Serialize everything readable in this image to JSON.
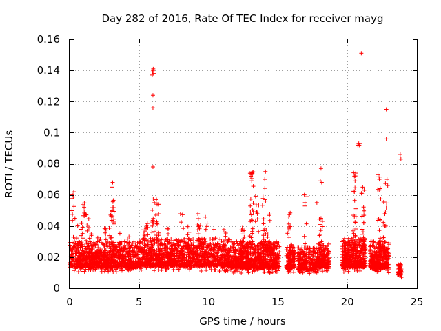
{
  "chart_data": {
    "type": "scatter",
    "title": "Day 282 of 2016, Rate Of TEC Index for receiver mayg",
    "xlabel": "GPS time / hours",
    "ylabel": "ROTI / TECUs",
    "xlim": [
      0,
      25
    ],
    "ylim": [
      0,
      0.16
    ],
    "x_ticks": [
      0,
      5,
      10,
      15,
      20,
      25
    ],
    "x_tick_labels": [
      "0",
      "5",
      "10",
      "15",
      "20",
      "25"
    ],
    "y_ticks": [
      0,
      0.02,
      0.04,
      0.06,
      0.08,
      0.1,
      0.12,
      0.14,
      0.16
    ],
    "y_tick_labels": [
      "0",
      "0.02",
      "0.04",
      "0.06",
      "0.08",
      "0.1",
      "0.12",
      "0.14",
      "0.16"
    ],
    "grid": true,
    "marker": "+",
    "color": "#ff0000",
    "series": [
      {
        "name": "ROTI",
        "segments": [
          {
            "x": [
              0.0,
              4.9
            ],
            "low": 0.004,
            "high": 0.03,
            "count": 900
          },
          {
            "x": [
              4.9,
              11.6
            ],
            "low": 0.004,
            "high": 0.032,
            "count": 1200
          },
          {
            "x": [
              11.6,
              15.1
            ],
            "low": 0.003,
            "high": 0.03,
            "count": 800
          },
          {
            "x": [
              15.6,
              16.2
            ],
            "low": 0.004,
            "high": 0.028,
            "count": 150
          },
          {
            "x": [
              16.4,
              17.8
            ],
            "low": 0.004,
            "high": 0.026,
            "count": 260
          },
          {
            "x": [
              17.8,
              18.7
            ],
            "low": 0.004,
            "high": 0.03,
            "count": 180
          },
          {
            "x": [
              19.6,
              21.3
            ],
            "low": 0.003,
            "high": 0.032,
            "count": 420
          },
          {
            "x": [
              21.6,
              23.0
            ],
            "low": 0.003,
            "high": 0.03,
            "count": 340
          },
          {
            "x": [
              23.6,
              23.9
            ],
            "low": 0.004,
            "high": 0.016,
            "count": 45
          }
        ],
        "spikes": [
          {
            "x": 0.25,
            "low": 0.02,
            "high": 0.062,
            "count": 10
          },
          {
            "x": 0.5,
            "low": 0.02,
            "high": 0.045,
            "count": 6
          },
          {
            "x": 0.95,
            "low": 0.025,
            "high": 0.058,
            "count": 15
          },
          {
            "x": 1.2,
            "low": 0.02,
            "high": 0.048,
            "count": 12
          },
          {
            "x": 1.5,
            "low": 0.02,
            "high": 0.045,
            "count": 12
          },
          {
            "x": 2.1,
            "low": 0.02,
            "high": 0.035,
            "count": 8
          },
          {
            "x": 2.6,
            "low": 0.02,
            "high": 0.04,
            "count": 10
          },
          {
            "x": 2.95,
            "low": 0.02,
            "high": 0.05,
            "count": 14
          },
          {
            "x": 3.1,
            "low": 0.025,
            "high": 0.067,
            "count": 16
          },
          {
            "x": 3.6,
            "low": 0.02,
            "high": 0.04,
            "count": 8
          },
          {
            "x": 4.2,
            "low": 0.02,
            "high": 0.035,
            "count": 8
          },
          {
            "x": 5.3,
            "low": 0.02,
            "high": 0.043,
            "count": 10
          },
          {
            "x": 5.6,
            "low": 0.02,
            "high": 0.042,
            "count": 10
          },
          {
            "x": 6.0,
            "low": 0.025,
            "high": 0.058,
            "count": 14
          },
          {
            "x": 6.3,
            "low": 0.025,
            "high": 0.058,
            "count": 12
          },
          {
            "x": 7.1,
            "low": 0.02,
            "high": 0.04,
            "count": 10
          },
          {
            "x": 8.1,
            "low": 0.02,
            "high": 0.051,
            "count": 8
          },
          {
            "x": 8.6,
            "low": 0.02,
            "high": 0.04,
            "count": 8
          },
          {
            "x": 9.3,
            "low": 0.02,
            "high": 0.051,
            "count": 12
          },
          {
            "x": 9.8,
            "low": 0.02,
            "high": 0.046,
            "count": 10
          },
          {
            "x": 10.4,
            "low": 0.02,
            "high": 0.038,
            "count": 8
          },
          {
            "x": 11.2,
            "low": 0.02,
            "high": 0.04,
            "count": 8
          },
          {
            "x": 12.5,
            "low": 0.02,
            "high": 0.04,
            "count": 10
          },
          {
            "x": 13.1,
            "low": 0.025,
            "high": 0.075,
            "count": 25
          },
          {
            "x": 13.5,
            "low": 0.02,
            "high": 0.06,
            "count": 12
          },
          {
            "x": 14.0,
            "low": 0.025,
            "high": 0.065,
            "count": 20
          },
          {
            "x": 14.3,
            "low": 0.02,
            "high": 0.05,
            "count": 12
          },
          {
            "x": 15.8,
            "low": 0.025,
            "high": 0.049,
            "count": 10
          },
          {
            "x": 17.0,
            "low": 0.025,
            "high": 0.06,
            "count": 8
          },
          {
            "x": 18.1,
            "low": 0.02,
            "high": 0.045,
            "count": 10
          },
          {
            "x": 20.5,
            "low": 0.025,
            "high": 0.075,
            "count": 25
          },
          {
            "x": 21.1,
            "low": 0.025,
            "high": 0.065,
            "count": 16
          },
          {
            "x": 22.3,
            "low": 0.025,
            "high": 0.072,
            "count": 18
          },
          {
            "x": 22.7,
            "low": 0.02,
            "high": 0.07,
            "count": 14
          }
        ],
        "outliers": [
          [
            6.0,
            0.14
          ],
          [
            5.98,
            0.139
          ],
          [
            6.05,
            0.138
          ],
          [
            6.02,
            0.141
          ],
          [
            5.95,
            0.137
          ],
          [
            6.0,
            0.124
          ],
          [
            6.0,
            0.116
          ],
          [
            6.0,
            0.078
          ],
          [
            6.25,
            0.057
          ],
          [
            6.3,
            0.054
          ],
          [
            6.2,
            0.047
          ],
          [
            0.2,
            0.06
          ],
          [
            0.3,
            0.062
          ],
          [
            3.1,
            0.068
          ],
          [
            3.05,
            0.065
          ],
          [
            13.1,
            0.074
          ],
          [
            13.05,
            0.072
          ],
          [
            14.1,
            0.075
          ],
          [
            14.05,
            0.07
          ],
          [
            16.9,
            0.06
          ],
          [
            17.8,
            0.055
          ],
          [
            18.1,
            0.077
          ],
          [
            18.05,
            0.069
          ],
          [
            18.15,
            0.068
          ],
          [
            18.1,
            0.045
          ],
          [
            18.2,
            0.043
          ],
          [
            20.6,
            0.074
          ],
          [
            20.55,
            0.069
          ],
          [
            20.5,
            0.062
          ],
          [
            20.8,
            0.093
          ],
          [
            20.85,
            0.092
          ],
          [
            20.75,
            0.092
          ],
          [
            20.9,
            0.093
          ],
          [
            21.0,
            0.151
          ],
          [
            21.1,
            0.065
          ],
          [
            21.2,
            0.063
          ],
          [
            22.2,
            0.073
          ],
          [
            22.3,
            0.07
          ],
          [
            22.35,
            0.064
          ],
          [
            22.8,
            0.115
          ],
          [
            22.8,
            0.096
          ],
          [
            22.85,
            0.07
          ],
          [
            22.9,
            0.066
          ],
          [
            23.8,
            0.086
          ],
          [
            23.85,
            0.083
          ]
        ]
      }
    ]
  }
}
